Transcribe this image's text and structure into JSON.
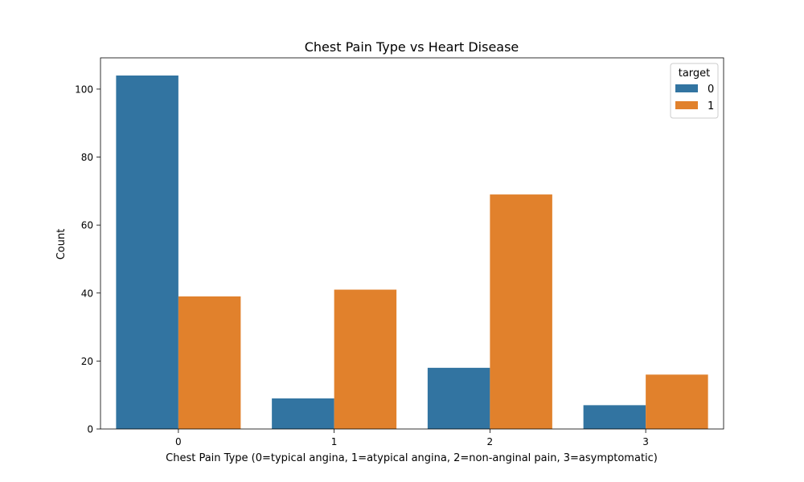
{
  "chart_data": {
    "type": "bar",
    "title": "Chest Pain Type vs Heart Disease",
    "xlabel": "Chest Pain Type (0=typical angina, 1=atypical angina, 2=non-anginal pain, 3=asymptomatic)",
    "ylabel": "Count",
    "categories": [
      "0",
      "1",
      "2",
      "3"
    ],
    "series": [
      {
        "name": "0",
        "values": [
          104,
          9,
          18,
          7
        ],
        "color": "#3274a1"
      },
      {
        "name": "1",
        "values": [
          39,
          41,
          69,
          16
        ],
        "color": "#e1812c"
      }
    ],
    "ylim": [
      0,
      109.2
    ],
    "yticks": [
      0,
      20,
      40,
      60,
      80,
      100
    ],
    "grid": false,
    "legend": {
      "title": "target",
      "position": "top-right"
    }
  }
}
